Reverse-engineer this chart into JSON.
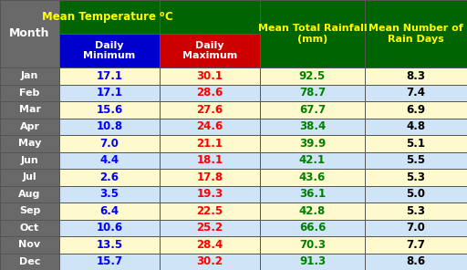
{
  "months": [
    "Jan",
    "Feb",
    "Mar",
    "Apr",
    "May",
    "Jun",
    "Jul",
    "Aug",
    "Sep",
    "Oct",
    "Nov",
    "Dec"
  ],
  "daily_min": [
    17.1,
    17.1,
    15.6,
    10.8,
    7.0,
    4.4,
    2.6,
    3.5,
    6.4,
    10.6,
    13.5,
    15.7
  ],
  "daily_max": [
    30.1,
    28.6,
    27.6,
    24.6,
    21.1,
    18.1,
    17.8,
    19.3,
    22.5,
    25.2,
    28.4,
    30.2
  ],
  "rainfall": [
    92.5,
    78.7,
    67.7,
    38.4,
    39.9,
    42.1,
    43.6,
    36.1,
    42.8,
    66.6,
    70.3,
    91.3
  ],
  "rain_days": [
    8.3,
    7.4,
    6.9,
    4.8,
    5.1,
    5.5,
    5.3,
    5.0,
    5.3,
    7.0,
    7.7,
    8.6
  ],
  "header_bg": "#006400",
  "sub_header_min_bg": "#0000CC",
  "sub_header_max_bg": "#CC0000",
  "month_col_bg": "#696969",
  "row_bg_odd": "#FFFACD",
  "row_bg_even": "#D0E4F7",
  "month_text_color": "#FFFFFF",
  "min_text_color": "#0000FF",
  "max_text_color": "#FF0000",
  "rainfall_text_color": "#008000",
  "rain_days_text_color": "#000000",
  "header_text_color": "#FFFF00",
  "subheader_text_color": "#FFFFFF",
  "border_color": "#555555",
  "fig_w": 5.12,
  "fig_h": 2.96,
  "dpi": 100
}
